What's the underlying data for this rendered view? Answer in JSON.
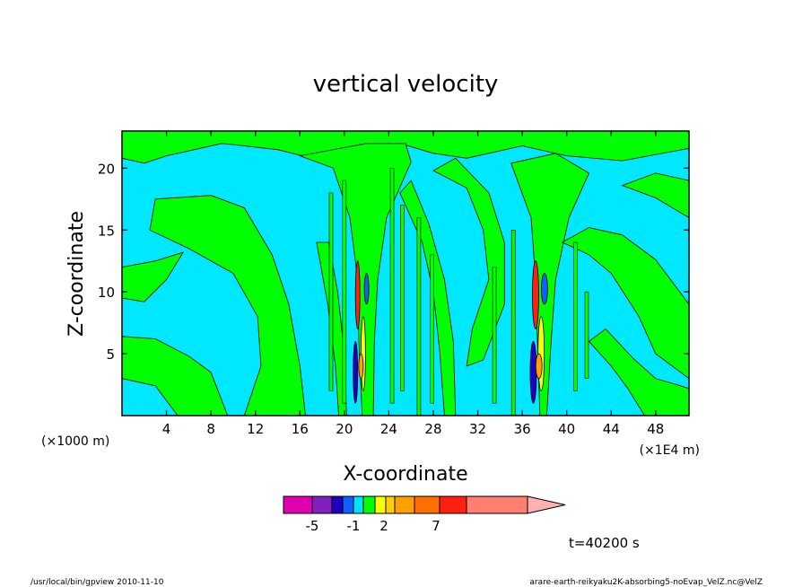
{
  "chart_data": {
    "type": "heatmap",
    "title": "vertical velocity",
    "xlabel": "X-coordinate",
    "ylabel": "Z-coordinate",
    "x_unit_label": "(×1E4 m)",
    "y_unit_label": "(×1000 m)",
    "xlim": [
      0,
      51
    ],
    "ylim": [
      0,
      23
    ],
    "x_ticks": [
      4,
      8,
      12,
      16,
      20,
      24,
      28,
      32,
      36,
      40,
      44,
      48
    ],
    "y_ticks": [
      5,
      10,
      15,
      20
    ],
    "colorbar": {
      "tick_labels": [
        "-5",
        "-1",
        "2",
        "7"
      ],
      "tick_values": [
        -5,
        -1,
        2,
        7
      ],
      "colors": [
        "#e000b0",
        "#8020c0",
        "#2000c0",
        "#1060ff",
        "#00e0ff",
        "#00ff00",
        "#ffff00",
        "#ffd000",
        "#ffa000",
        "#ff7000",
        "#ff2010",
        "#ff8070",
        "#ffb0b0"
      ]
    },
    "background_color": "#00e8ff",
    "positive_color": "#00ff00",
    "strong_updraft_columns_x": [
      21.5,
      37.5
    ],
    "time_label": "t=40200 s"
  },
  "footer": {
    "left": "/usr/local/bin/gpview  2010-11-10",
    "right": "arare-earth-reikyaku2K-absorbing5-noEvap_VelZ.nc@VelZ"
  }
}
